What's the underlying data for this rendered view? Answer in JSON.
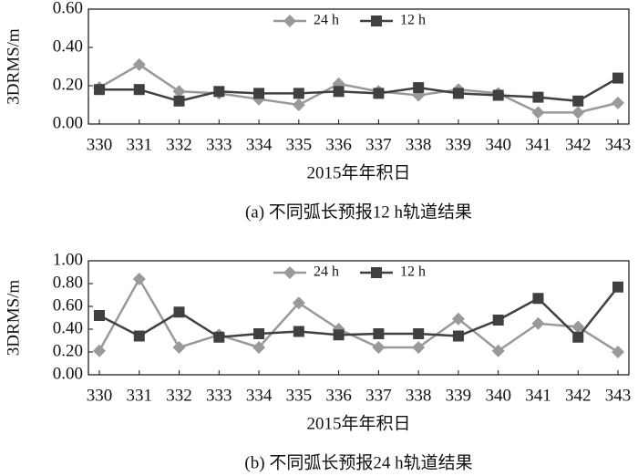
{
  "chart_data": [
    {
      "type": "line",
      "caption": "(a) 不同弧长预报12 h轨道结果",
      "x_label": "2015年年积日",
      "y_label": "3DRMS/m",
      "categories": [
        "330",
        "331",
        "332",
        "333",
        "334",
        "335",
        "336",
        "337",
        "338",
        "339",
        "340",
        "341",
        "342",
        "343"
      ],
      "series": [
        {
          "name": "24 h",
          "color": "#999999",
          "marker": "diamond",
          "values": [
            0.19,
            0.31,
            0.17,
            0.16,
            0.13,
            0.1,
            0.21,
            0.17,
            0.15,
            0.18,
            0.16,
            0.06,
            0.06,
            0.11
          ]
        },
        {
          "name": "12 h",
          "color": "#404040",
          "marker": "square",
          "values": [
            0.18,
            0.18,
            0.12,
            0.17,
            0.16,
            0.16,
            0.17,
            0.16,
            0.19,
            0.16,
            0.15,
            0.14,
            0.12,
            0.24
          ]
        }
      ],
      "ylim": [
        0,
        0.6
      ],
      "yticks": [
        {
          "value": 0,
          "label": "0.00"
        },
        {
          "value": 0.2,
          "label": "0.20"
        },
        {
          "value": 0.4,
          "label": "0.40"
        },
        {
          "value": 0.6,
          "label": "0.60"
        }
      ],
      "legend": "top"
    },
    {
      "type": "line",
      "caption": "(b) 不同弧长预报24 h轨道结果",
      "x_label": "2015年年积日",
      "y_label": "3DRMS/m",
      "categories": [
        "330",
        "331",
        "332",
        "333",
        "334",
        "335",
        "336",
        "337",
        "338",
        "339",
        "340",
        "341",
        "342",
        "343"
      ],
      "series": [
        {
          "name": "24 h",
          "color": "#999999",
          "marker": "diamond",
          "values": [
            0.21,
            0.84,
            0.24,
            0.35,
            0.24,
            0.63,
            0.4,
            0.24,
            0.24,
            0.49,
            0.21,
            0.45,
            0.42,
            0.2
          ]
        },
        {
          "name": "12 h",
          "color": "#404040",
          "marker": "square",
          "values": [
            0.52,
            0.34,
            0.55,
            0.33,
            0.36,
            0.38,
            0.35,
            0.36,
            0.36,
            0.34,
            0.48,
            0.67,
            0.33,
            0.77
          ]
        }
      ],
      "ylim": [
        0,
        1
      ],
      "yticks": [
        {
          "value": 0,
          "label": "0.00"
        },
        {
          "value": 0.2,
          "label": "0.20"
        },
        {
          "value": 0.4,
          "label": "0.40"
        },
        {
          "value": 0.6,
          "label": "0.60"
        },
        {
          "value": 0.8,
          "label": "0.80"
        },
        {
          "value": 1,
          "label": "1.00"
        }
      ],
      "legend": "top"
    }
  ]
}
